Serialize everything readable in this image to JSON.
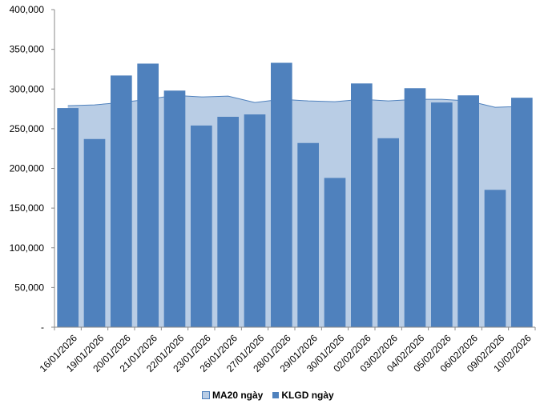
{
  "chart_data": {
    "type": "bar",
    "categories": [
      "16/01/2026",
      "19/01/2026",
      "20/01/2026",
      "21/01/2026",
      "22/01/2026",
      "23/01/2026",
      "26/01/2026",
      "27/01/2026",
      "28/01/2026",
      "29/01/2026",
      "30/01/2026",
      "02/02/2026",
      "03/02/2026",
      "04/02/2026",
      "05/02/2026",
      "06/02/2026",
      "09/02/2026",
      "10/02/2026"
    ],
    "series": [
      {
        "name": "MA20 ngày",
        "type": "area",
        "values": [
          279000,
          280000,
          283000,
          287000,
          292000,
          290000,
          291000,
          283000,
          287000,
          285000,
          284000,
          287000,
          285000,
          287000,
          287000,
          285000,
          277000,
          278000
        ]
      },
      {
        "name": "KLGD ngày",
        "type": "bar",
        "values": [
          276000,
          237000,
          317000,
          332000,
          298000,
          254000,
          265000,
          268000,
          333000,
          232000,
          188000,
          307000,
          238000,
          301000,
          283000,
          292000,
          173000,
          289000
        ]
      }
    ],
    "y_ticks": [
      "-",
      "50,000",
      "100,000",
      "150,000",
      "200,000",
      "250,000",
      "300,000",
      "350,000",
      "400,000"
    ],
    "ylim": [
      0,
      400000
    ],
    "grid": false,
    "legend_position": "bottom",
    "colors": {
      "bar": "#4f81bd",
      "area_fill": "#b9cde5",
      "area_line": "#4f81bd",
      "axis": "#888888"
    }
  }
}
